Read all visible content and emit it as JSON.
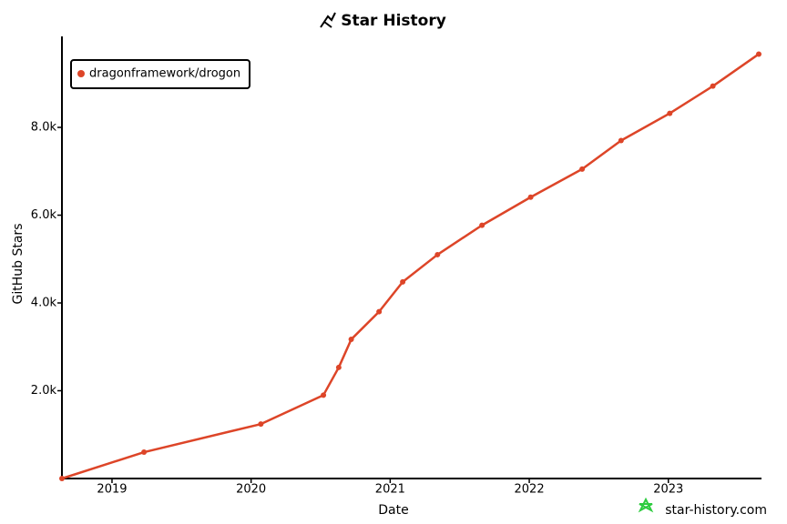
{
  "chart_data": {
    "type": "line",
    "title": "Star History",
    "x_label": "Date",
    "y_label": "GitHub Stars",
    "watermark": "star-history.com",
    "x": [
      2018.64,
      2019.23,
      2020.07,
      2020.52,
      2020.63,
      2020.72,
      2020.92,
      2021.09,
      2021.34,
      2021.66,
      2022.01,
      2022.38,
      2022.66,
      2023.01,
      2023.32,
      2023.65
    ],
    "series": [
      {
        "name": "dragonframework/drogon",
        "color": "#dd4528",
        "values": [
          0,
          600,
          1240,
          1900,
          2530,
          3170,
          3800,
          4480,
          5100,
          5770,
          6410,
          7050,
          7700,
          8320,
          8940,
          9670
        ]
      }
    ],
    "xlim": [
      2018.64,
      2023.65
    ],
    "xticks": [
      2019,
      2020,
      2021,
      2022,
      2023
    ],
    "ylim": [
      0,
      9700
    ],
    "yticks": [
      {
        "value": 2000,
        "label": "2.0k"
      },
      {
        "value": 4000,
        "label": "4.0k"
      },
      {
        "value": 6000,
        "label": "6.0k"
      },
      {
        "value": 8000,
        "label": "8.0k"
      }
    ],
    "legend": "top-left",
    "grid": false
  }
}
